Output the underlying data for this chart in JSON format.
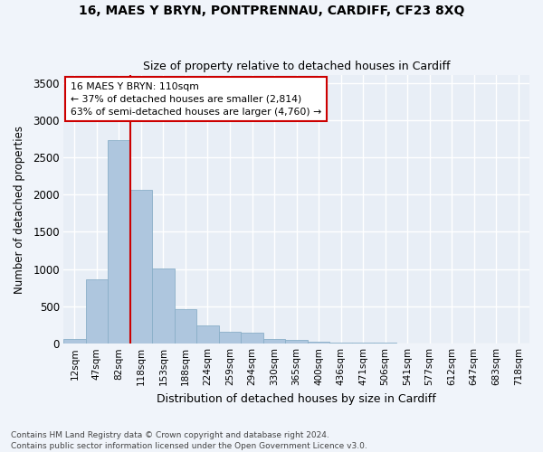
{
  "title1": "16, MAES Y BRYN, PONTPRENNAU, CARDIFF, CF23 8XQ",
  "title2": "Size of property relative to detached houses in Cardiff",
  "xlabel": "Distribution of detached houses by size in Cardiff",
  "ylabel": "Number of detached properties",
  "footnote1": "Contains HM Land Registry data © Crown copyright and database right 2024.",
  "footnote2": "Contains public sector information licensed under the Open Government Licence v3.0.",
  "annotation_title": "16 MAES Y BRYN: 110sqm",
  "annotation_line1": "← 37% of detached houses are smaller (2,814)",
  "annotation_line2": "63% of semi-detached houses are larger (4,760) →",
  "bar_labels": [
    "12sqm",
    "47sqm",
    "82sqm",
    "118sqm",
    "153sqm",
    "188sqm",
    "224sqm",
    "259sqm",
    "294sqm",
    "330sqm",
    "365sqm",
    "400sqm",
    "436sqm",
    "471sqm",
    "506sqm",
    "541sqm",
    "577sqm",
    "612sqm",
    "647sqm",
    "683sqm",
    "718sqm"
  ],
  "bar_values": [
    55,
    860,
    2730,
    2060,
    1010,
    460,
    245,
    155,
    150,
    65,
    45,
    25,
    15,
    8,
    5,
    4,
    3,
    2,
    2,
    1,
    1
  ],
  "bar_color": "#aec6de",
  "bar_edge_color": "#8aafc8",
  "vline_color": "#cc0000",
  "bg_color": "#e8eef6",
  "grid_color": "#ffffff",
  "fig_bg_color": "#f0f4fa",
  "ylim": [
    0,
    3600
  ],
  "yticks": [
    0,
    500,
    1000,
    1500,
    2000,
    2500,
    3000,
    3500
  ]
}
